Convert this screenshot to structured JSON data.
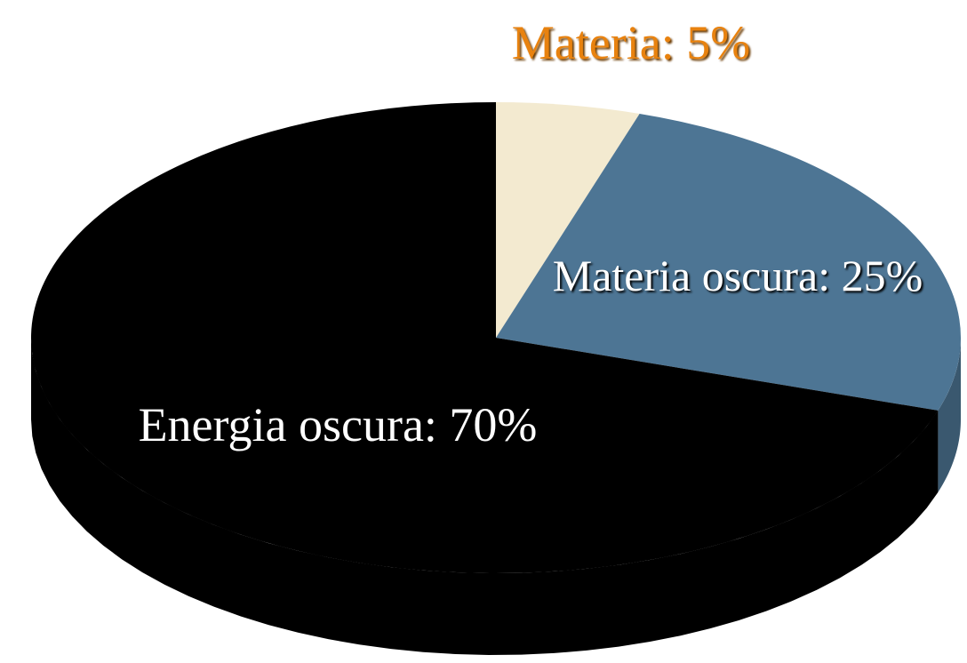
{
  "chart_data": {
    "type": "pie",
    "values": [
      5,
      25,
      70
    ],
    "value_labels": [
      "Materia: 5%",
      "Materia oscura: 25%",
      "Energia oscura: 70%"
    ],
    "colors": [
      "#f3ead0",
      "#4d7594",
      "#000000"
    ]
  }
}
